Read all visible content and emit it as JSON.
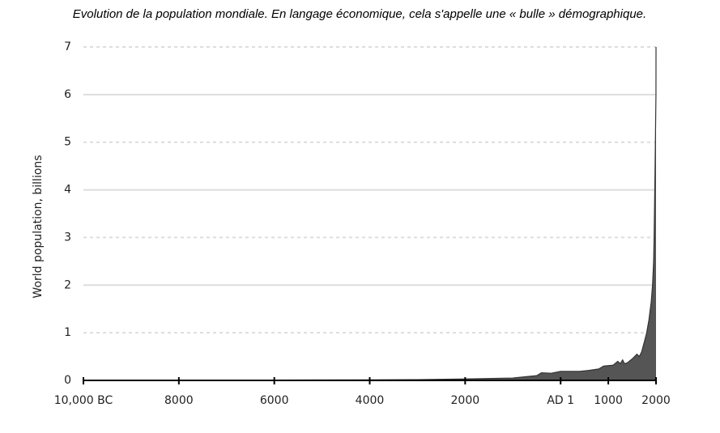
{
  "chart_data": {
    "type": "area",
    "title": "Evolution de la population mondiale. En langage économique, cela s'appelle une « bulle » démographique.",
    "y_label": "World population, billions",
    "x": [
      -10000,
      -8000,
      -6000,
      -4000,
      -3000,
      -2000,
      -1000,
      -500,
      -400,
      -200,
      1,
      200,
      400,
      600,
      800,
      900,
      1000,
      1100,
      1200,
      1250,
      1300,
      1340,
      1400,
      1500,
      1600,
      1650,
      1700,
      1800,
      1850,
      1900,
      1927,
      1950,
      1960,
      1974,
      1987,
      1999,
      2000
    ],
    "values": [
      0.004,
      0.005,
      0.007,
      0.01,
      0.015,
      0.03,
      0.05,
      0.1,
      0.16,
      0.15,
      0.19,
      0.19,
      0.19,
      0.21,
      0.24,
      0.3,
      0.31,
      0.32,
      0.4,
      0.35,
      0.43,
      0.35,
      0.37,
      0.45,
      0.55,
      0.5,
      0.6,
      0.98,
      1.26,
      1.65,
      2.0,
      2.5,
      3.0,
      4.0,
      5.0,
      6.0,
      7.0
    ],
    "color": "#555555",
    "xlim": [
      -10000,
      2000
    ],
    "xticks": [
      {
        "value": -10000,
        "label": "10,000 BC"
      },
      {
        "value": -8000,
        "label": "8000"
      },
      {
        "value": -6000,
        "label": "6000"
      },
      {
        "value": -4000,
        "label": "4000"
      },
      {
        "value": -2000,
        "label": "2000"
      },
      {
        "value": 1,
        "label": "AD 1"
      },
      1000,
      2000
    ],
    "ylim": [
      0,
      7
    ],
    "yticks": [
      0,
      1,
      2,
      3,
      4,
      5,
      6,
      7
    ],
    "grid": true
  }
}
